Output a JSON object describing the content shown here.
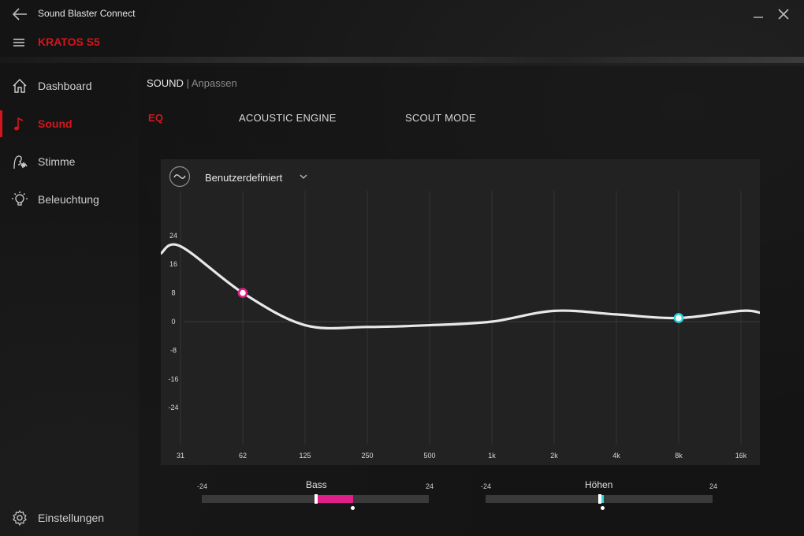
{
  "app": {
    "title": "Sound Blaster Connect",
    "device_name": "KRATOS S5"
  },
  "colors": {
    "accent": "#d4151c",
    "bass": "#e0208a",
    "treble": "#2fd7e0",
    "curve": "#e8e8e8"
  },
  "sidebar": {
    "items": [
      {
        "label": "Dashboard",
        "icon": "home-icon",
        "active": false
      },
      {
        "label": "Sound",
        "icon": "music-note-icon",
        "active": true
      },
      {
        "label": "Stimme",
        "icon": "voice-icon",
        "active": false
      },
      {
        "label": "Beleuchtung",
        "icon": "lightbulb-icon",
        "active": false
      }
    ],
    "settings_label": "Einstellungen"
  },
  "breadcrumb": {
    "main": "SOUND",
    "separator": "|",
    "sub": "Anpassen"
  },
  "tabs": [
    {
      "label": "EQ",
      "active": true
    },
    {
      "label": "ACOUSTIC ENGINE",
      "active": false
    },
    {
      "label": "SCOUT MODE",
      "active": false
    }
  ],
  "eq": {
    "preset": "Benutzerdefiniert",
    "y_ticks": [
      "24",
      "16",
      "8",
      "0",
      "-8",
      "-16",
      "-24"
    ],
    "y_range": [
      -24,
      24
    ],
    "x_ticks": [
      "31",
      "62",
      "125",
      "250",
      "500",
      "1k",
      "2k",
      "4k",
      "8k",
      "16k"
    ],
    "curve_gain_points": [
      {
        "band": "31",
        "gain": 21
      },
      {
        "band": "62",
        "gain": 8
      },
      {
        "band": "125",
        "gain": -1
      },
      {
        "band": "250",
        "gain": -1.5
      },
      {
        "band": "500",
        "gain": -1
      },
      {
        "band": "1k",
        "gain": 0
      },
      {
        "band": "2k",
        "gain": 3
      },
      {
        "band": "4k",
        "gain": 2
      },
      {
        "band": "8k",
        "gain": 1
      },
      {
        "band": "16k",
        "gain": 3
      }
    ],
    "bass_handle": {
      "band": "62",
      "gain": 8
    },
    "treble_handle": {
      "band": "8k",
      "gain": 1
    }
  },
  "bass": {
    "label": "Bass",
    "min_label": "-24",
    "max_label": "24",
    "value": 8,
    "min": -24,
    "max": 24
  },
  "treble": {
    "label": "Höhen",
    "min_label": "-24",
    "max_label": "24",
    "value": 1,
    "min": -24,
    "max": 24
  }
}
